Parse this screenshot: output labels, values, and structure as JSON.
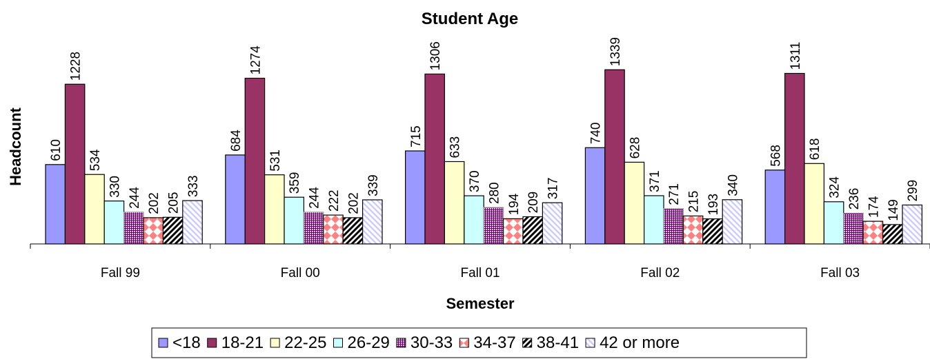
{
  "chart_data": {
    "type": "bar",
    "title": "Student Age",
    "xlabel": "Semester",
    "ylabel": "Headcount",
    "categories": [
      "Fall 99",
      "Fall 00",
      "Fall 01",
      "Fall 02",
      "Fall 03"
    ],
    "ylim": [
      0,
      1400
    ],
    "grid": false,
    "legend_position": "bottom",
    "series": [
      {
        "name": "<18",
        "values": [
          610,
          684,
          715,
          740,
          568
        ],
        "color": "#9999ff",
        "pattern": "solid"
      },
      {
        "name": "18-21",
        "values": [
          1228,
          1274,
          1306,
          1339,
          1311
        ],
        "color": "#993366",
        "pattern": "solid"
      },
      {
        "name": "22-25",
        "values": [
          534,
          531,
          633,
          628,
          618
        ],
        "color": "#ffffcc",
        "pattern": "solid"
      },
      {
        "name": "26-29",
        "values": [
          330,
          359,
          370,
          371,
          324
        ],
        "color": "#ccffff",
        "pattern": "solid"
      },
      {
        "name": "30-33",
        "values": [
          244,
          244,
          280,
          271,
          236
        ],
        "color": "#660066",
        "pattern": "grid"
      },
      {
        "name": "34-37",
        "values": [
          202,
          222,
          194,
          215,
          174
        ],
        "color": "#ff8080",
        "pattern": "diamond"
      },
      {
        "name": "38-41",
        "values": [
          205,
          202,
          209,
          193,
          149
        ],
        "color": "#000000",
        "pattern": "diagonal"
      },
      {
        "name": "42 or more",
        "values": [
          333,
          339,
          317,
          340,
          299
        ],
        "color": "#ccccff",
        "pattern": "diagonal-light"
      }
    ]
  }
}
